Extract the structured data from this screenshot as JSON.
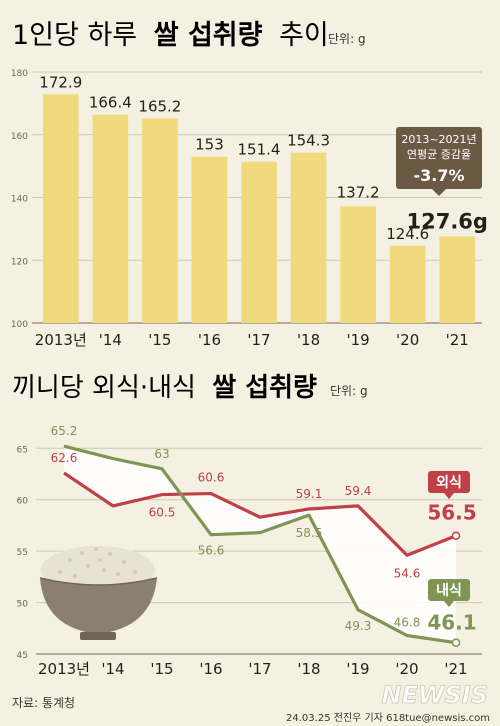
{
  "chart_data": [
    {
      "type": "bar",
      "title_regular": "1인당 하루",
      "title_bold": "쌀 섭취량",
      "title_tail": "추이",
      "unit": "단위: g",
      "categories": [
        "2013년",
        "'14",
        "'15",
        "'16",
        "'17",
        "'18",
        "'19",
        "'20",
        "'21"
      ],
      "values": [
        172.9,
        166.4,
        165.2,
        153,
        151.4,
        154.3,
        137.2,
        124.6,
        127.6
      ],
      "value_labels": [
        "172.9",
        "166.4",
        "165.2",
        "153",
        "151.4",
        "154.3",
        "137.2",
        "124.6",
        "127.6g"
      ],
      "ylim": [
        100,
        180
      ],
      "yticks": [
        100,
        120,
        140,
        160,
        180
      ],
      "grid": true,
      "colors": {
        "bar": "#f1d97e",
        "highlight_bar": "#f1d97e"
      },
      "annotation": {
        "line1": "2013~2021년",
        "line2": "연평균 증감율",
        "value": "-3.7%",
        "color": "#6b5a43"
      }
    },
    {
      "type": "line",
      "title_regular": "끼니당 외식·내식",
      "title_bold": "쌀 섭취량",
      "unit": "단위: g",
      "categories": [
        "2013년",
        "'14",
        "'15",
        "'16",
        "'17",
        "'18",
        "'19",
        "'20",
        "'21"
      ],
      "ylim": [
        45,
        66
      ],
      "yticks": [
        45,
        50,
        55,
        60,
        65
      ],
      "grid": true,
      "series": [
        {
          "name": "외식",
          "values": [
            62.6,
            59.4,
            60.5,
            60.6,
            58.3,
            59.1,
            59.4,
            54.6,
            56.5
          ],
          "labels": [
            "62.6",
            "",
            "60.5",
            "60.6",
            "",
            "59.1",
            "59.4",
            "54.6",
            "56.5"
          ],
          "color": "#bf4046"
        },
        {
          "name": "내식",
          "values": [
            65.2,
            64.0,
            63.0,
            56.6,
            56.8,
            58.5,
            49.3,
            46.8,
            46.1
          ],
          "labels": [
            "65.2",
            "",
            "63",
            "56.6",
            "",
            "58.5",
            "49.3",
            "46.8",
            "46.1"
          ],
          "color": "#7f9556"
        }
      ]
    }
  ],
  "footer": {
    "source": "자료: 통계청",
    "credit": "24.03.25 전진우 기자 618tue@newsis.com",
    "logo": "NEWSIS"
  }
}
